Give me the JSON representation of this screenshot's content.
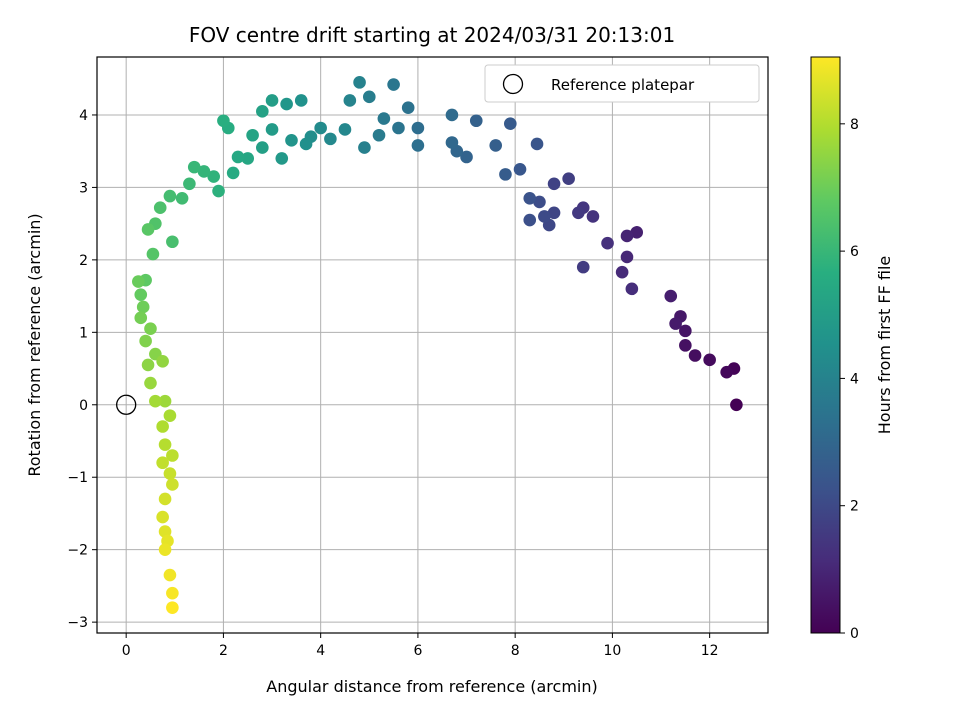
{
  "chart_data": {
    "type": "scatter",
    "title": "FOV centre drift starting at 2024/03/31 20:13:01",
    "xlabel": "Angular distance from reference (arcmin)",
    "ylabel": "Rotation from reference (arcmin)",
    "colorbar_label": "Hours from first FF file",
    "xlim": [
      -0.6,
      13.2
    ],
    "ylim": [
      -3.15,
      4.8
    ],
    "clim": [
      0,
      9.05
    ],
    "x_ticks": [
      0,
      2,
      4,
      6,
      8,
      10,
      12
    ],
    "y_ticks": [
      -3,
      -2,
      -1,
      0,
      1,
      2,
      3,
      4
    ],
    "colorbar_ticks": [
      0,
      2,
      4,
      6,
      8
    ],
    "grid": true,
    "colormap": "viridis",
    "legend": {
      "placement": "top-right",
      "entries": [
        {
          "label": "Reference platepar",
          "marker": "open-circle"
        }
      ]
    },
    "reference_point": {
      "x": 0,
      "y": 0
    },
    "path_points": [
      [
        12.55,
        0.0
      ],
      [
        12.5,
        0.5
      ],
      [
        12.35,
        0.45
      ],
      [
        12.0,
        0.62
      ],
      [
        11.7,
        0.68
      ],
      [
        11.5,
        0.82
      ],
      [
        11.5,
        1.02
      ],
      [
        11.4,
        1.22
      ],
      [
        11.3,
        1.12
      ],
      [
        11.2,
        1.5
      ],
      [
        10.5,
        2.38
      ],
      [
        10.3,
        2.33
      ],
      [
        10.3,
        2.04
      ],
      [
        10.2,
        1.83
      ],
      [
        10.4,
        1.6
      ],
      [
        9.9,
        2.23
      ],
      [
        9.6,
        2.6
      ],
      [
        9.4,
        2.72
      ],
      [
        9.3,
        2.65
      ],
      [
        9.4,
        1.9
      ],
      [
        9.1,
        3.12
      ],
      [
        8.8,
        3.05
      ],
      [
        8.8,
        2.65
      ],
      [
        8.7,
        2.48
      ],
      [
        8.6,
        2.6
      ],
      [
        8.5,
        2.8
      ],
      [
        8.3,
        2.55
      ],
      [
        8.3,
        2.85
      ],
      [
        8.45,
        3.6
      ],
      [
        8.1,
        3.25
      ],
      [
        7.9,
        3.88
      ],
      [
        7.8,
        3.18
      ],
      [
        7.6,
        3.58
      ],
      [
        7.2,
        3.92
      ],
      [
        7.0,
        3.42
      ],
      [
        6.8,
        3.5
      ],
      [
        6.7,
        3.62
      ],
      [
        6.7,
        4.0
      ],
      [
        6.0,
        3.82
      ],
      [
        6.0,
        3.58
      ],
      [
        5.8,
        4.1
      ],
      [
        5.6,
        3.82
      ],
      [
        5.5,
        4.42
      ],
      [
        5.3,
        3.95
      ],
      [
        5.2,
        3.72
      ],
      [
        5.0,
        4.25
      ],
      [
        4.9,
        3.55
      ],
      [
        4.8,
        4.45
      ],
      [
        4.6,
        4.2
      ],
      [
        4.5,
        3.8
      ],
      [
        4.2,
        3.67
      ],
      [
        4.0,
        3.82
      ],
      [
        3.8,
        3.7
      ],
      [
        3.7,
        3.6
      ],
      [
        3.6,
        4.2
      ],
      [
        3.4,
        3.65
      ],
      [
        3.3,
        4.15
      ],
      [
        3.2,
        3.4
      ],
      [
        3.0,
        3.8
      ],
      [
        3.0,
        4.2
      ],
      [
        2.8,
        3.55
      ],
      [
        2.8,
        4.05
      ],
      [
        2.6,
        3.72
      ],
      [
        2.5,
        3.4
      ],
      [
        2.3,
        3.42
      ],
      [
        2.2,
        3.2
      ],
      [
        2.1,
        3.82
      ],
      [
        2.0,
        3.92
      ],
      [
        1.9,
        2.95
      ],
      [
        1.8,
        3.15
      ],
      [
        1.6,
        3.22
      ],
      [
        1.4,
        3.28
      ],
      [
        1.3,
        3.05
      ],
      [
        1.15,
        2.85
      ],
      [
        0.9,
        2.88
      ],
      [
        0.95,
        2.25
      ],
      [
        0.7,
        2.72
      ],
      [
        0.6,
        2.5
      ],
      [
        0.55,
        2.08
      ],
      [
        0.45,
        2.42
      ],
      [
        0.4,
        1.72
      ],
      [
        0.3,
        1.52
      ],
      [
        0.25,
        1.7
      ],
      [
        0.35,
        1.35
      ],
      [
        0.3,
        1.2
      ],
      [
        0.5,
        1.05
      ],
      [
        0.4,
        0.88
      ],
      [
        0.6,
        0.7
      ],
      [
        0.45,
        0.55
      ],
      [
        0.75,
        0.6
      ],
      [
        0.5,
        0.3
      ],
      [
        0.8,
        0.05
      ],
      [
        0.6,
        0.05
      ],
      [
        0.9,
        -0.15
      ],
      [
        0.75,
        -0.3
      ],
      [
        0.8,
        -0.55
      ],
      [
        0.95,
        -0.7
      ],
      [
        0.75,
        -0.8
      ],
      [
        0.9,
        -0.95
      ],
      [
        0.95,
        -1.1
      ],
      [
        0.8,
        -1.3
      ],
      [
        0.75,
        -1.55
      ],
      [
        0.8,
        -1.75
      ],
      [
        0.85,
        -1.88
      ],
      [
        0.8,
        -2.0
      ],
      [
        0.9,
        -2.35
      ],
      [
        0.95,
        -2.6
      ],
      [
        0.95,
        -2.8
      ]
    ]
  }
}
